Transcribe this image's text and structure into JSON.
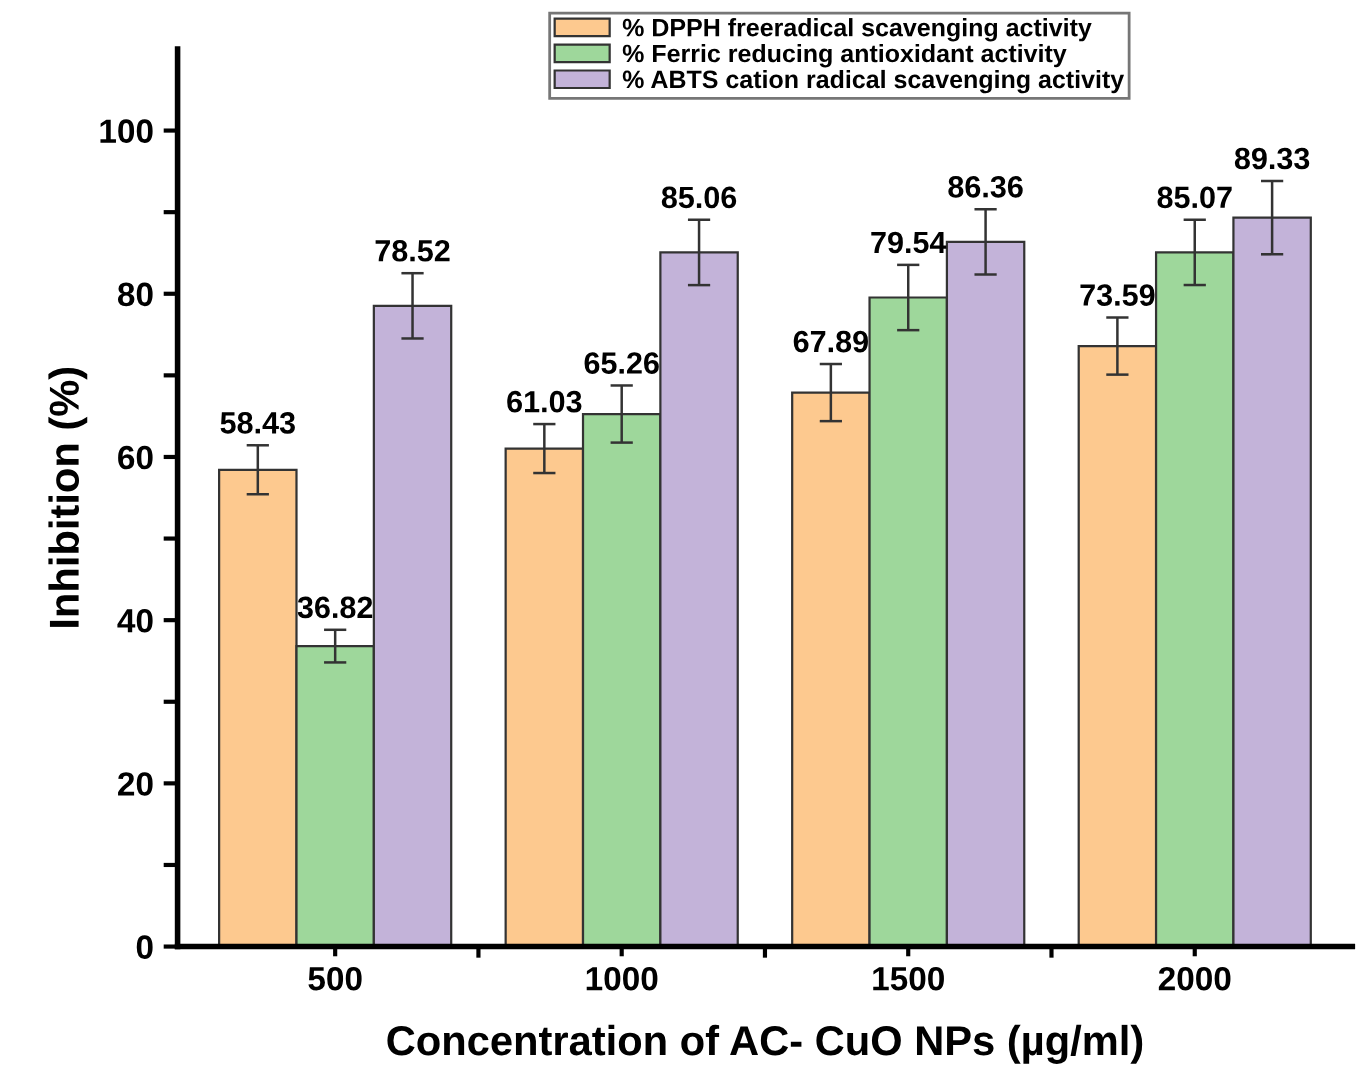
{
  "chart_data": {
    "type": "bar",
    "xlabel": "Concentration of AC- CuO NPs (µg/ml)",
    "ylabel": "Inhibition (%)",
    "categories": [
      "500",
      "1000",
      "1500",
      "2000"
    ],
    "series": [
      {
        "name": "% DPPH freeradical scavenging activity",
        "color": "#fdc98f",
        "values": [
          58.43,
          61.03,
          67.89,
          73.59
        ],
        "errors": [
          3,
          3,
          3.5,
          3.5
        ]
      },
      {
        "name": "% Ferric reducing antioxidant activity",
        "color": "#9ed79b",
        "values": [
          36.82,
          65.26,
          79.54,
          85.07
        ],
        "errors": [
          2,
          3.5,
          4,
          4
        ]
      },
      {
        "name": "% ABTS cation radical scavenging activity",
        "color": "#c3b3d9",
        "values": [
          78.52,
          85.06,
          86.36,
          89.33
        ],
        "errors": [
          4,
          4,
          4,
          4.5
        ]
      }
    ],
    "ylim": [
      0,
      110
    ],
    "yticks": [
      0,
      {
        "value": 10,
        "label": null
      },
      20,
      {
        "value": 30,
        "label": null
      },
      40,
      {
        "value": 50,
        "label": null
      },
      60,
      {
        "value": 70,
        "label": null
      },
      80,
      {
        "value": 90,
        "label": null
      },
      100
    ],
    "data_labels": true,
    "legend": "top right",
    "grid": false
  }
}
